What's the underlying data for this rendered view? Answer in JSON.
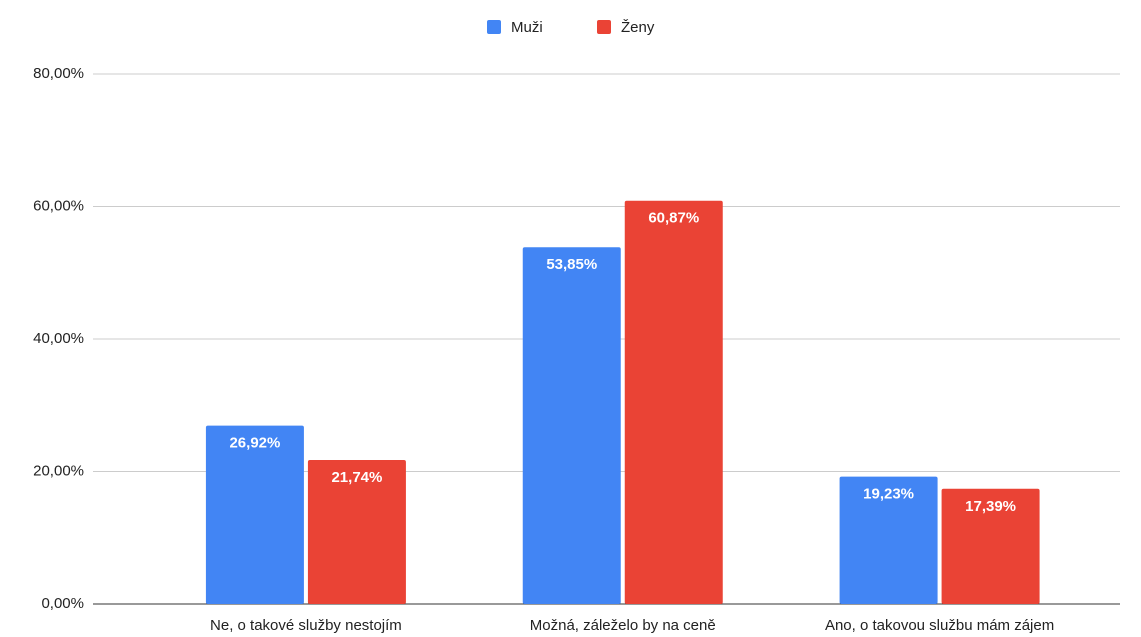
{
  "chart_data": {
    "type": "bar",
    "categories": [
      "Ne, o takové služby nestojím",
      "Možná, záleželo by na ceně",
      "Ano, o takovou službu mám zájem"
    ],
    "series": [
      {
        "name": "Muži",
        "color": "#4285f4",
        "values": [
          26.92,
          53.85,
          19.23
        ],
        "value_labels": [
          "26,92%",
          "53,85%",
          "19,23%"
        ]
      },
      {
        "name": "Ženy",
        "color": "#ea4335",
        "values": [
          21.74,
          60.87,
          17.39
        ],
        "value_labels": [
          "21,74%",
          "60,87%",
          "17,39%"
        ]
      }
    ],
    "ylim": [
      0,
      80
    ],
    "yticks": [
      {
        "value": 0,
        "label": "0,00%"
      },
      {
        "value": 20,
        "label": "20,00%"
      },
      {
        "value": 40,
        "label": "40,00%"
      },
      {
        "value": 60,
        "label": "60,00%"
      },
      {
        "value": 80,
        "label": "80,00%"
      }
    ],
    "grid": true,
    "legend": "top"
  }
}
